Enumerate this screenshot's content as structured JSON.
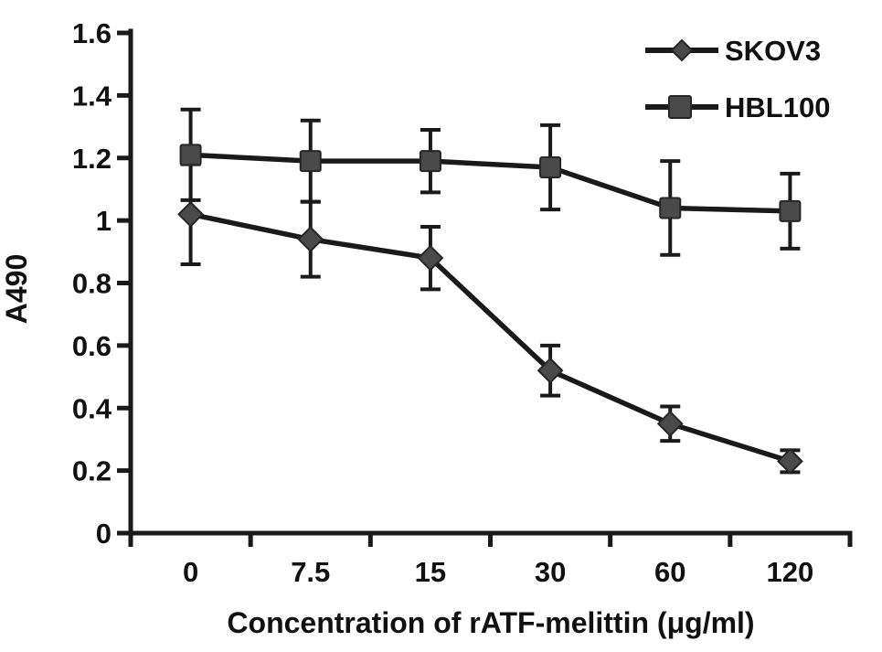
{
  "chart_data": {
    "type": "line",
    "title": "",
    "xlabel": "Concentration of rATF-melittin (μg/ml)",
    "ylabel": "A490",
    "categories": [
      "0",
      "7.5",
      "15",
      "30",
      "60",
      "120"
    ],
    "y_ticks": [
      "0",
      "0.2",
      "0.4",
      "0.6",
      "0.8",
      "1",
      "1.2",
      "1.4",
      "1.6"
    ],
    "ylim": [
      0,
      1.6
    ],
    "grid": false,
    "legend_position": "top-right",
    "series": [
      {
        "name": "SKOV3",
        "marker": "diamond",
        "values": [
          1.02,
          0.94,
          0.88,
          0.52,
          0.35,
          0.23
        ],
        "errors": [
          0.16,
          0.12,
          0.1,
          0.08,
          0.055,
          0.035
        ]
      },
      {
        "name": "HBL100",
        "marker": "square",
        "values": [
          1.21,
          1.19,
          1.19,
          1.17,
          1.04,
          1.03
        ],
        "errors": [
          0.145,
          0.13,
          0.1,
          0.135,
          0.15,
          0.12
        ]
      }
    ],
    "colors": {
      "line": "#1a1a1a",
      "marker_fill": "#4a4a4a",
      "marker_stroke": "#262626",
      "text": "#111111",
      "background": "#ffffff"
    }
  }
}
